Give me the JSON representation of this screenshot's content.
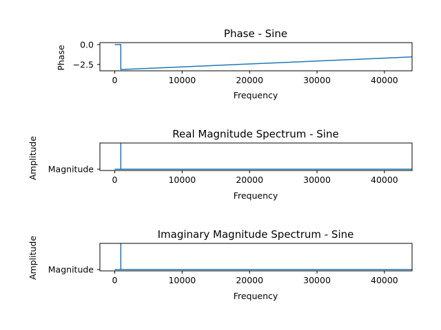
{
  "chart_data": [
    {
      "type": "line",
      "title": "Phase - Sine",
      "xlabel": "Frequency",
      "ylabel": "Phase",
      "xlim": [
        -2200,
        44100
      ],
      "ylim": [
        -3.3,
        0.25
      ],
      "xticks": [
        0,
        10000,
        20000,
        30000,
        40000
      ],
      "yticks": [
        0.0,
        -2.5
      ],
      "ytick_labels": [
        "0.0",
        "−2.5"
      ],
      "color": "#1f77b4",
      "series": [
        {
          "x": [
            0,
            900,
            900,
            44100
          ],
          "y": [
            0.0,
            0.0,
            -3.14,
            -1.55
          ]
        }
      ]
    },
    {
      "type": "line",
      "title": "Real Magnitude Spectrum - Sine",
      "xlabel": "Frequency",
      "ylabel": "Amplitude",
      "xlim": [
        -2200,
        44100
      ],
      "ylim": [
        -0.05,
        1.0
      ],
      "xticks": [
        0,
        10000,
        20000,
        30000,
        40000
      ],
      "yticks": [
        0
      ],
      "ytick_labels": [
        "Magnitude"
      ],
      "color": "#1f77b4",
      "series": [
        {
          "x": [
            0,
            900,
            900,
            900,
            44100
          ],
          "y": [
            0,
            0,
            1.0,
            0,
            0
          ]
        }
      ]
    },
    {
      "type": "line",
      "title": "Imaginary Magnitude Spectrum - Sine",
      "xlabel": "Frequency",
      "ylabel": "Amplitude",
      "xlim": [
        -2200,
        44100
      ],
      "ylim": [
        -0.05,
        1.0
      ],
      "xticks": [
        0,
        10000,
        20000,
        30000,
        40000
      ],
      "yticks": [
        0
      ],
      "ytick_labels": [
        "Magnitude"
      ],
      "color": "#1f77b4",
      "series": [
        {
          "x": [
            0,
            900,
            900,
            900,
            44100
          ],
          "y": [
            0,
            0,
            1.0,
            0,
            0
          ]
        }
      ]
    }
  ]
}
